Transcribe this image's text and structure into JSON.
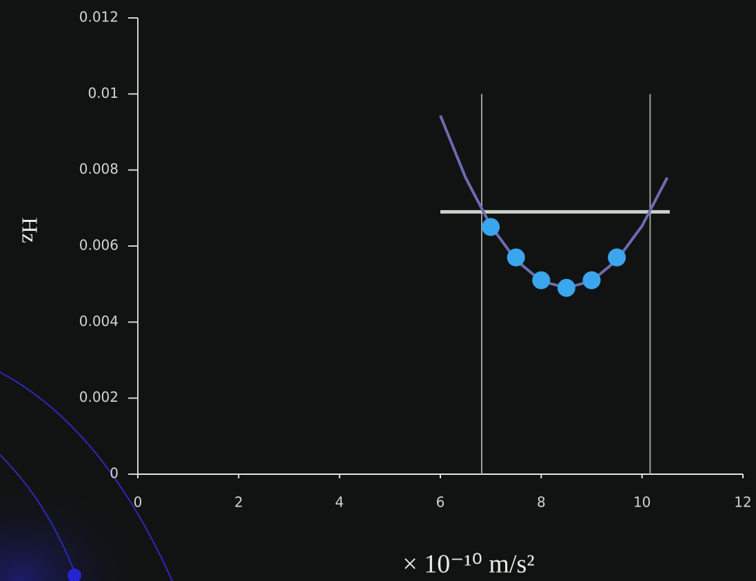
{
  "chart_data": {
    "type": "scatter",
    "y_label": "Hz",
    "x_label": "× 10⁻¹⁰ m/s²",
    "xlim": [
      0,
      12
    ],
    "xticks": [
      0,
      2,
      4,
      6,
      8,
      10,
      12
    ],
    "ylim": [
      0,
      0.012
    ],
    "yticks": [
      0,
      0.002,
      0.004,
      0.006,
      0.008,
      0.01,
      0.012
    ],
    "points": {
      "color": "#3aa6ee",
      "x": [
        7.0,
        7.5,
        8.0,
        8.5,
        9.0,
        9.5
      ],
      "values": [
        0.0065,
        0.0057,
        0.0051,
        0.0049,
        0.0051,
        0.0057
      ]
    },
    "fit": {
      "color": "#6c6cb0",
      "x": [
        6,
        6.5,
        7,
        7.5,
        8,
        8.5,
        9,
        9.5,
        10,
        10.5
      ],
      "values": [
        0.00943,
        0.0078,
        0.00653,
        0.00563,
        0.00508,
        0.0049,
        0.00508,
        0.00563,
        0.00653,
        0.0078
      ]
    },
    "hline": {
      "color": "#c9d2c9",
      "y": 0.0069,
      "x": [
        6,
        10.55
      ]
    },
    "vlines": {
      "color": "#9aa39a",
      "x": [
        6.82,
        10.16
      ],
      "y": [
        0,
        0.01
      ]
    }
  }
}
